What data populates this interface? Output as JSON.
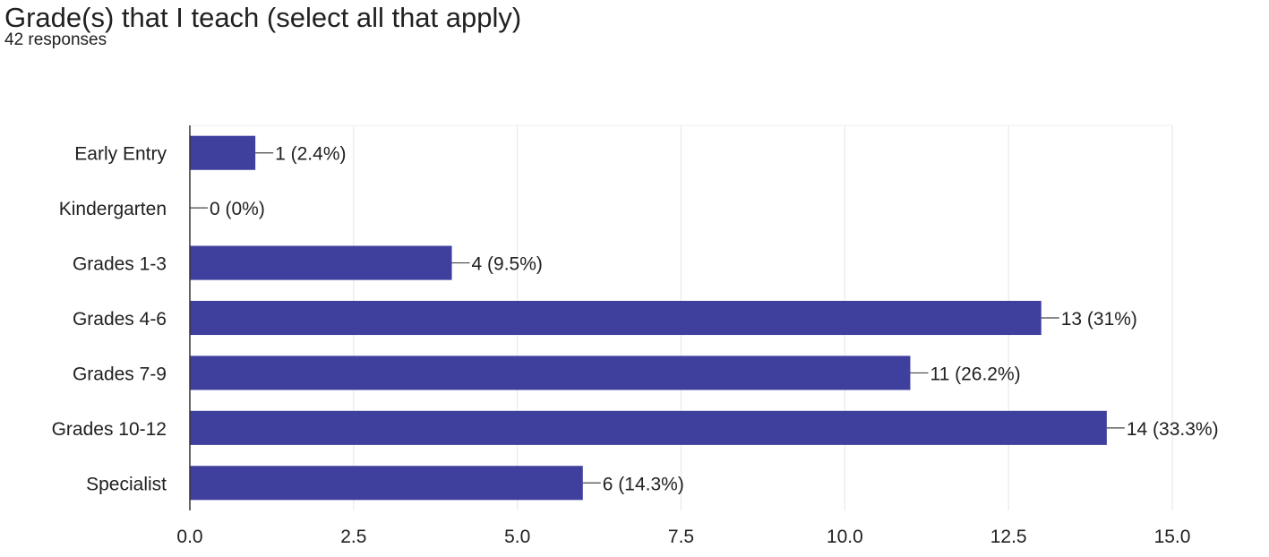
{
  "title": "Grade(s) that I teach (select all that apply)",
  "subtitle": "42 responses",
  "colors": {
    "bar": "#3f3f9d",
    "grid": "#e6e6e6",
    "axis": "#333333",
    "label_text": "#212121"
  },
  "chart_data": {
    "type": "bar",
    "orientation": "horizontal",
    "title": "",
    "xlabel": "",
    "ylabel": "",
    "categories": [
      "Early Entry",
      "Kindergarten",
      "Grades 1-3",
      "Grades 4-6",
      "Grades 7-9",
      "Grades 10-12",
      "Specialist"
    ],
    "values": [
      1,
      0,
      4,
      13,
      11,
      14,
      6
    ],
    "data_labels": [
      "1 (2.4%)",
      "0 (0%)",
      "4 (9.5%)",
      "13 (31%)",
      "11 (26.2%)",
      "14 (33.3%)",
      "6 (14.3%)"
    ],
    "xlim": [
      0,
      15
    ],
    "xticks": [
      "0.0",
      "2.5",
      "5.0",
      "7.5",
      "10.0",
      "12.5",
      "15.0"
    ],
    "grid": true,
    "legend": "none"
  }
}
